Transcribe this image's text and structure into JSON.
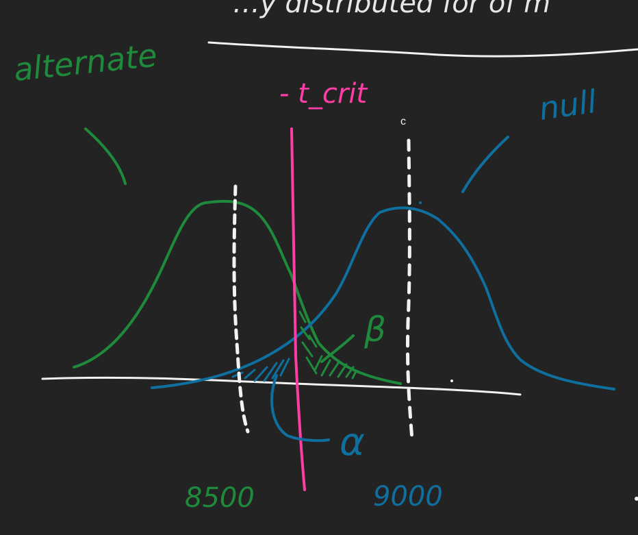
{
  "colors": {
    "background": "#232323",
    "alternate": "#1f8a3c",
    "null": "#0f6f9e",
    "t_crit": "#ff3ea5",
    "axis": "#f2f2f2"
  },
  "labels": {
    "header_scribble": "…y distributed for of m",
    "alternate": "alternate",
    "null": "null",
    "t_crit": "- t_crit",
    "c": "c",
    "beta": "β",
    "alpha": "α",
    "alt_mean": "8500",
    "null_mean": "9000"
  }
}
